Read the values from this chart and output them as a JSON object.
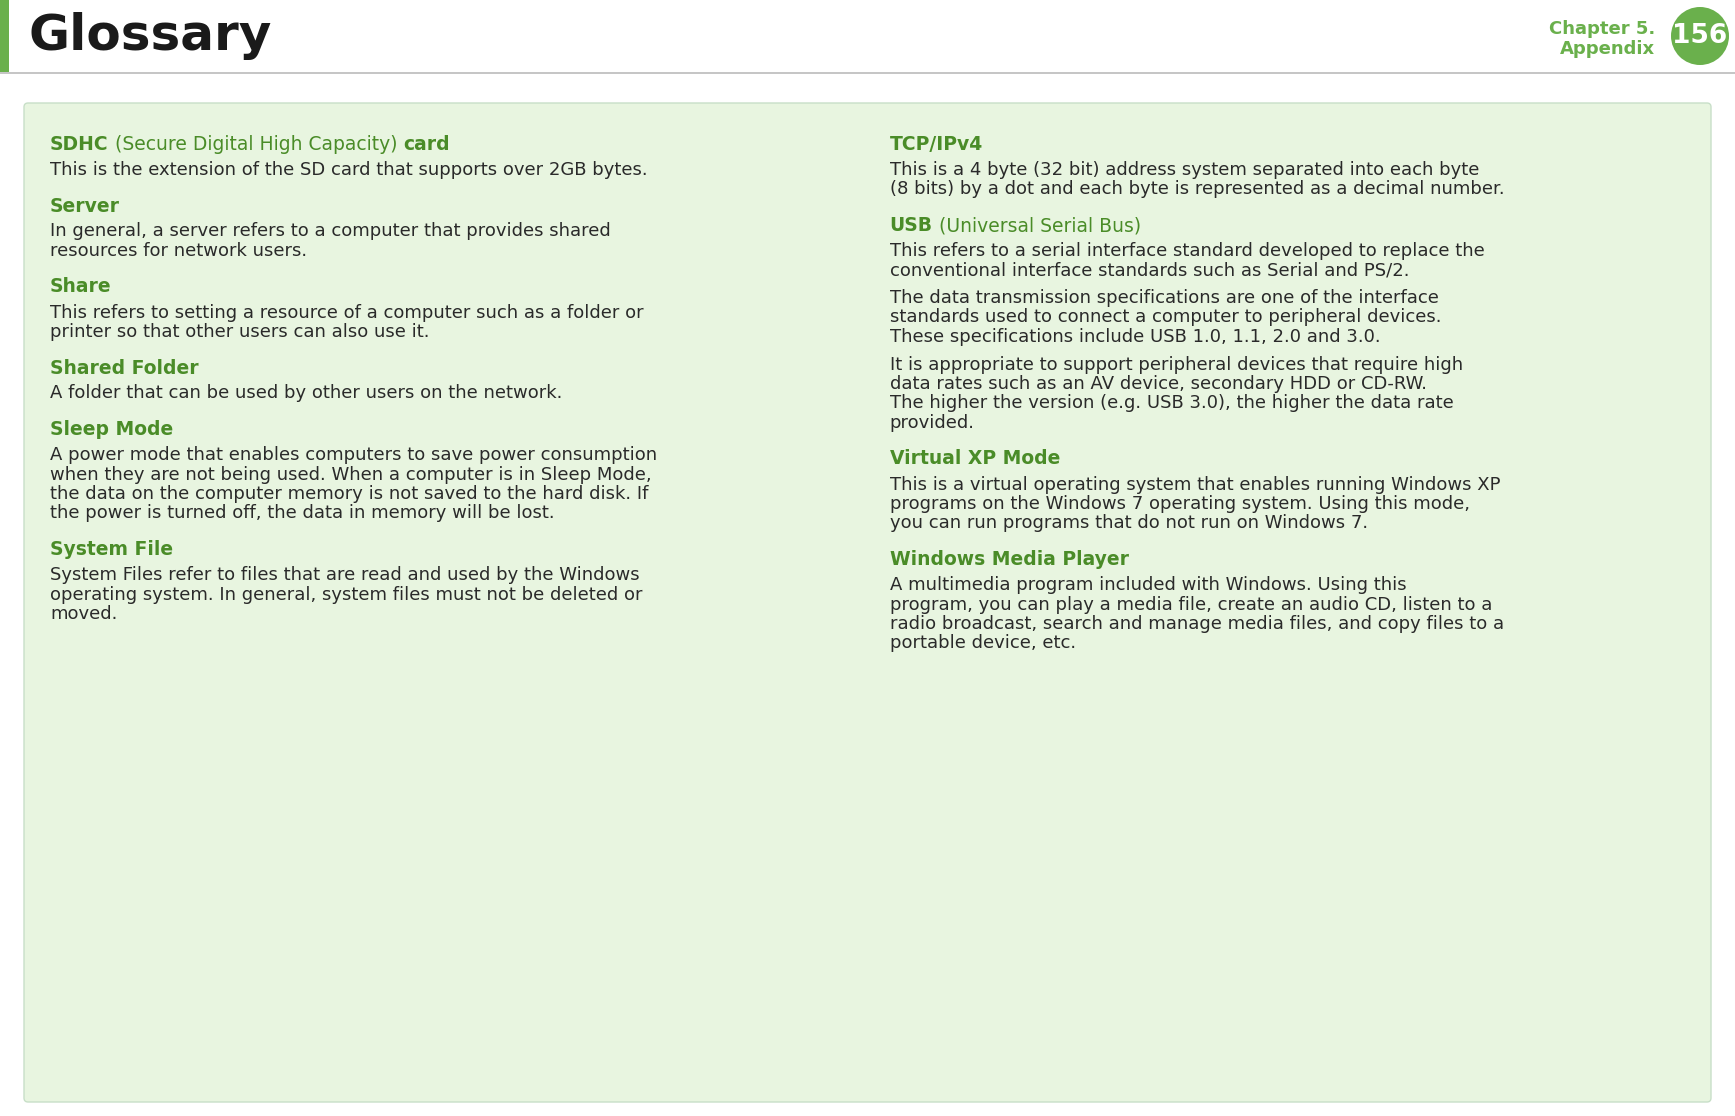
{
  "page_bg": "#ffffff",
  "header_bg": "#ffffff",
  "content_bg": "#e8f5e0",
  "green_accent": "#6ab04c",
  "dark_green_heading": "#4a8c28",
  "dark_text": "#2a2a2a",
  "title": "Glossary",
  "title_color": "#1a1a1a",
  "chapter_number": "156",
  "chapter_color": "#6ab04c",
  "header_line_color": "#bbbbbb",
  "left_bar_color": "#6ab04c",
  "entries_left": [
    {
      "term_parts": [
        {
          "text": "SDHC",
          "bold": true
        },
        {
          "text": " (Secure Digital High Capacity) ",
          "bold": false
        },
        {
          "text": "card",
          "bold": true
        }
      ],
      "definition_parts": [
        "This is the extension of the SD card that supports over 2GB bytes."
      ]
    },
    {
      "term_parts": [
        {
          "text": "Server",
          "bold": true
        }
      ],
      "definition_parts": [
        "In general, a server refers to a computer that provides shared\nresources for network users."
      ]
    },
    {
      "term_parts": [
        {
          "text": "Share",
          "bold": true
        }
      ],
      "definition_parts": [
        "This refers to setting a resource of a computer such as a folder or\nprinter so that other users can also use it."
      ]
    },
    {
      "term_parts": [
        {
          "text": "Shared Folder",
          "bold": true
        }
      ],
      "definition_parts": [
        "A folder that can be used by other users on the network."
      ]
    },
    {
      "term_parts": [
        {
          "text": "Sleep Mode",
          "bold": true
        }
      ],
      "definition_parts": [
        "A power mode that enables computers to save power consumption\nwhen they are not being used. When a computer is in Sleep Mode,\nthe data on the computer memory is not saved to the hard disk. If\nthe power is turned off, the data in memory will be lost."
      ]
    },
    {
      "term_parts": [
        {
          "text": "System File",
          "bold": true
        }
      ],
      "definition_parts": [
        "System Files refer to files that are read and used by the Windows\noperating system. In general, system files must not be deleted or\nmoved."
      ]
    }
  ],
  "entries_right": [
    {
      "term_parts": [
        {
          "text": "TCP/IPv4",
          "bold": true
        }
      ],
      "definition_parts": [
        "This is a 4 byte (32 bit) address system separated into each byte\n(8 bits) by a dot and each byte is represented as a decimal number."
      ]
    },
    {
      "term_parts": [
        {
          "text": "USB",
          "bold": true
        },
        {
          "text": " (Universal Serial Bus)",
          "bold": false
        }
      ],
      "definition_parts": [
        "This refers to a serial interface standard developed to replace the\nconventional interface standards such as Serial and PS/2.",
        "The data transmission specifications are one of the interface\nstandards used to connect a computer to peripheral devices.\nThese specifications include USB 1.0, 1.1, 2.0 and 3.0.",
        "It is appropriate to support peripheral devices that require high\ndata rates such as an AV device, secondary HDD or CD-RW.\nThe higher the version (e.g. USB 3.0), the higher the data rate\nprovided."
      ]
    },
    {
      "term_parts": [
        {
          "text": "Virtual XP Mode",
          "bold": true
        }
      ],
      "definition_parts": [
        "This is a virtual operating system that enables running Windows XP\nprograms on the Windows 7 operating system. Using this mode,\nyou can run programs that do not run on Windows 7."
      ]
    },
    {
      "term_parts": [
        {
          "text": "Windows Media Player",
          "bold": true
        }
      ],
      "definition_parts": [
        "A multimedia program included with Windows. Using this\nprogram, you can play a media file, create an audio CD, listen to a\nradio broadcast, search and manage media files, and copy files to a\nportable device, etc."
      ]
    }
  ]
}
